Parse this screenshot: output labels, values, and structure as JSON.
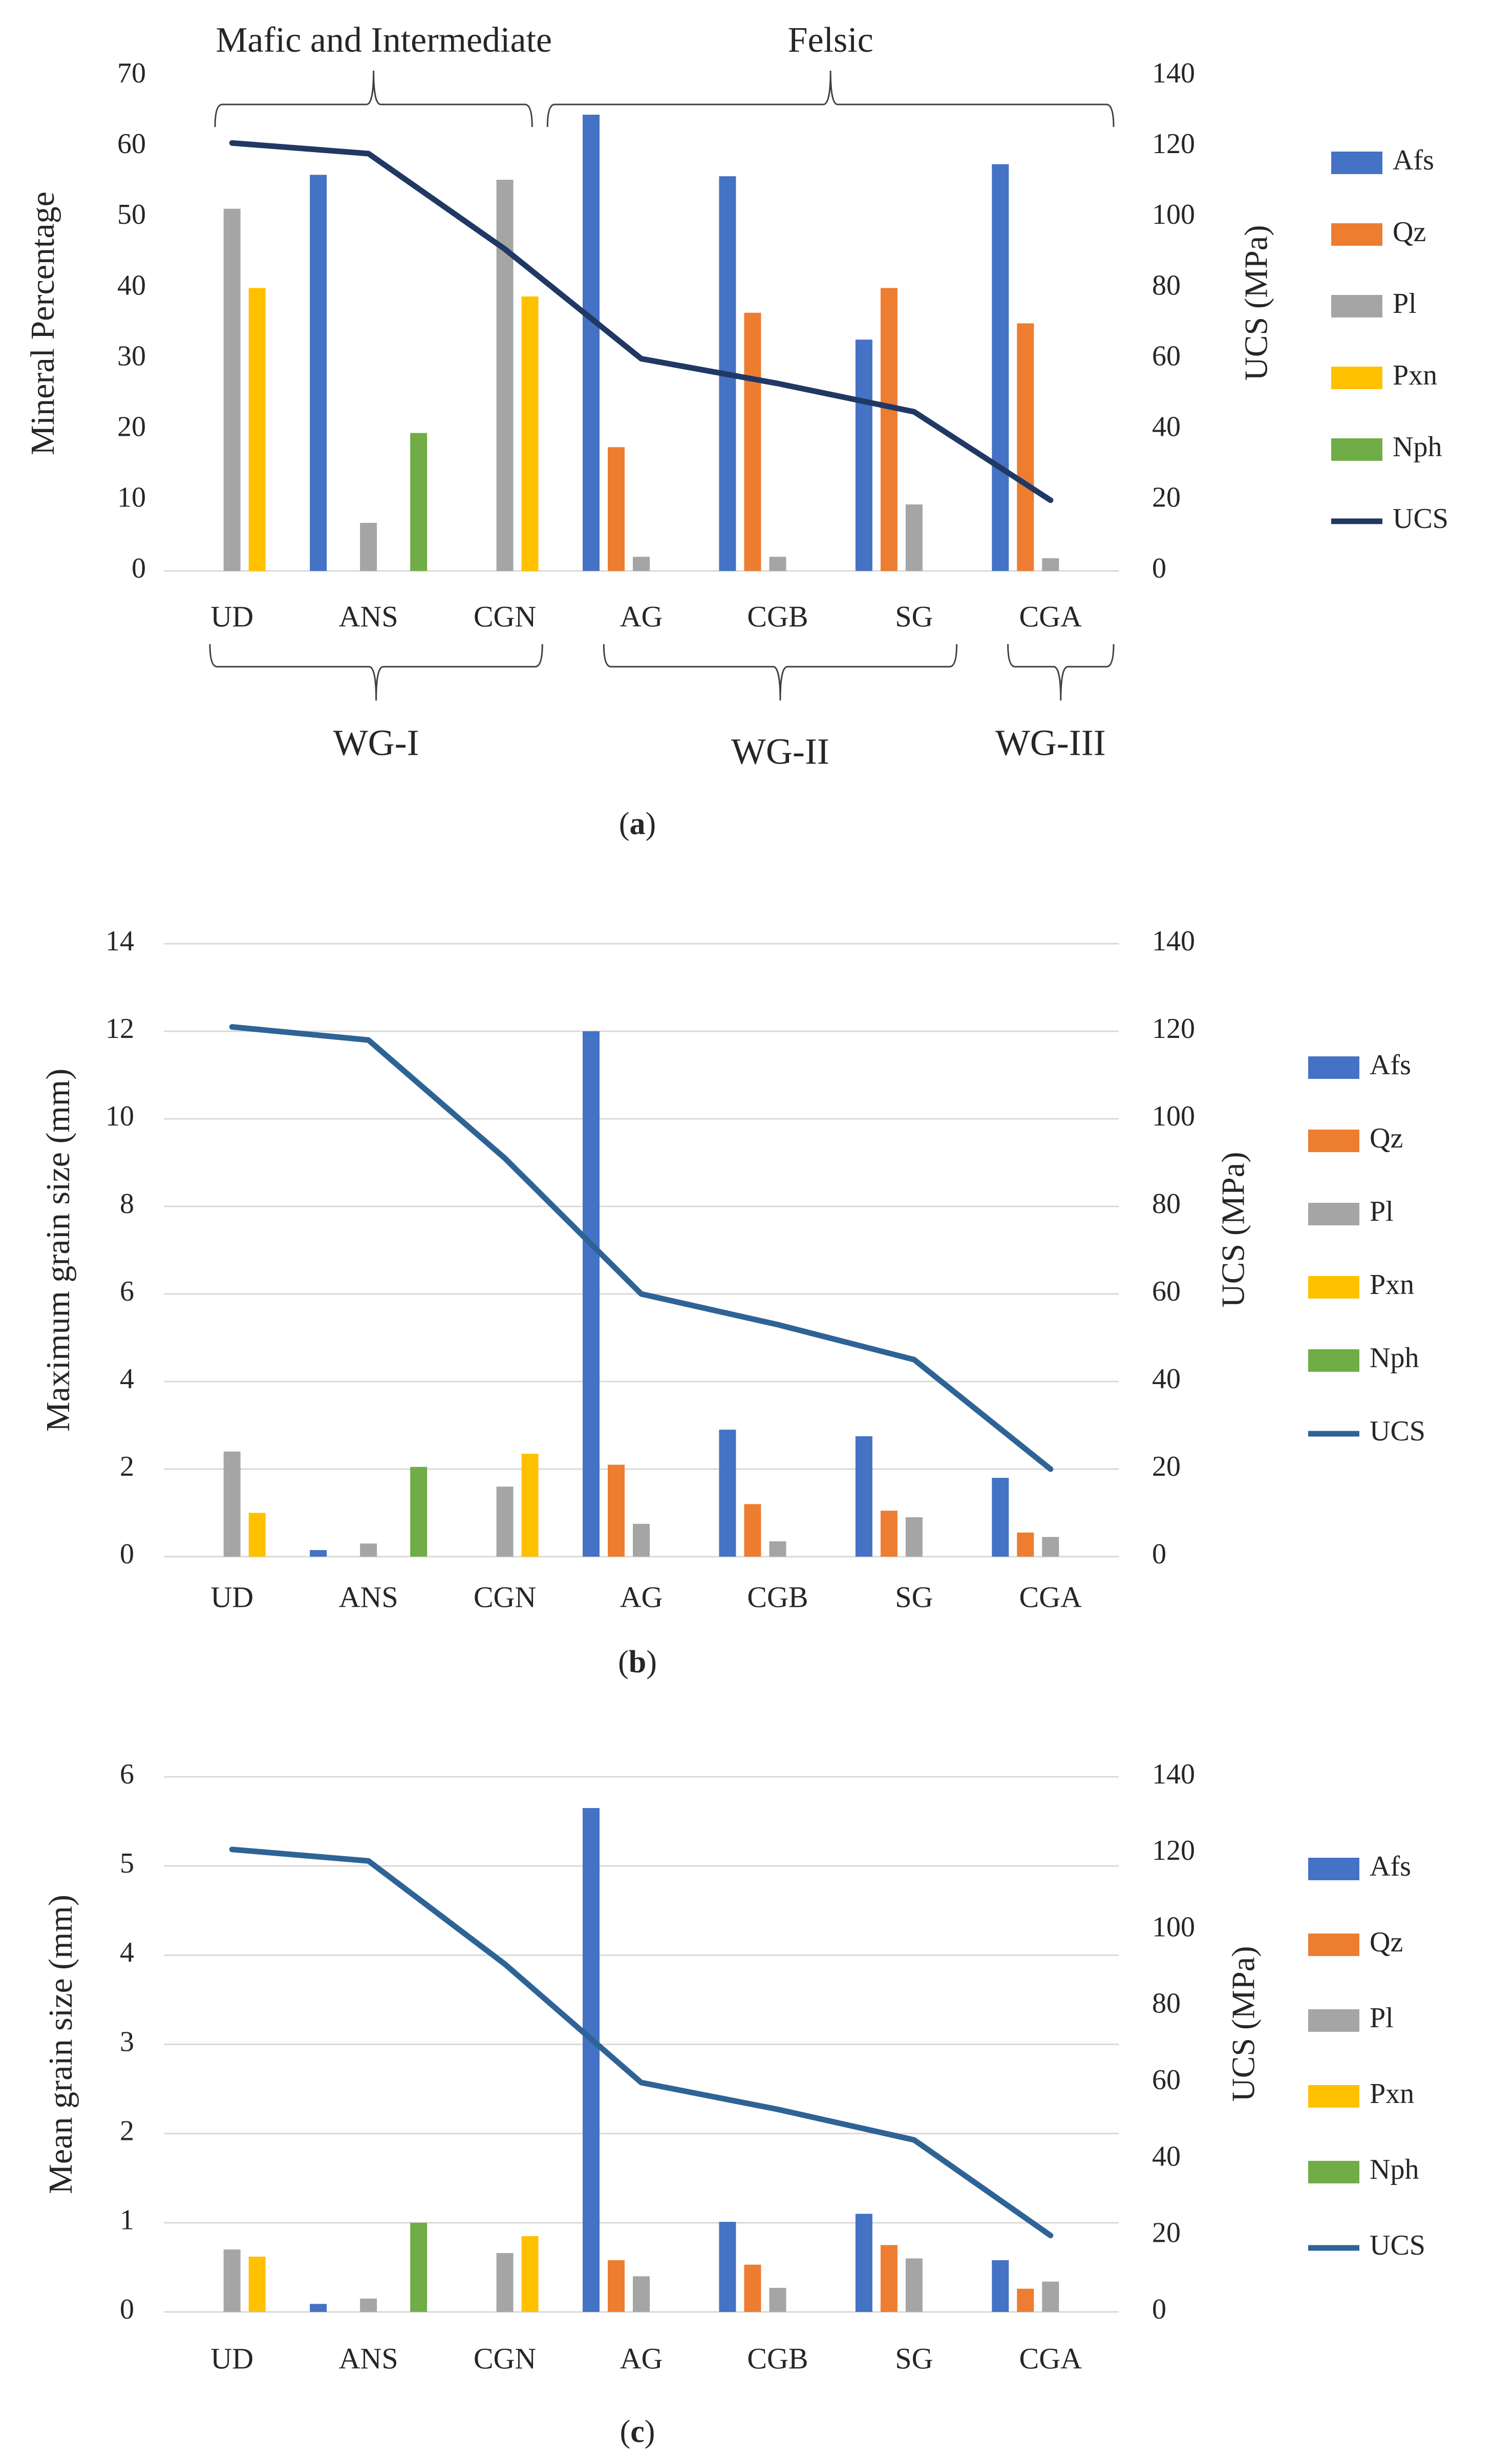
{
  "colors": {
    "Afs": "#4472C4",
    "Qz": "#ED7D31",
    "Pl": "#A5A5A5",
    "Pxn": "#FFC000",
    "Nph": "#70AD47",
    "UCS_a": "#203864",
    "UCS_bc": "#2E6396",
    "grid": "#D9D9D9",
    "axis_text": "#595959"
  },
  "chart_data": [
    {
      "type": "bar",
      "panel_label": "a",
      "categories": [
        "UD",
        "ANS",
        "CGN",
        "AG",
        "CGB",
        "SG",
        "CGA"
      ],
      "ylabel": "Mineral Percentage",
      "y2label": "UCS (MPa)",
      "ylim": [
        0,
        70
      ],
      "y2lim": [
        0,
        140
      ],
      "yticks": [
        "0",
        "10",
        "20",
        "30",
        "40",
        "50",
        "60",
        "70"
      ],
      "y2ticks": [
        "0",
        "20",
        "40",
        "60",
        "80",
        "100",
        "120",
        "140"
      ],
      "grid": false,
      "series": [
        {
          "name": "Afs",
          "values": [
            0,
            56,
            0,
            64.5,
            55.8,
            32.7,
            57.5
          ]
        },
        {
          "name": "Qz",
          "values": [
            0,
            0,
            0,
            17.5,
            36.5,
            40,
            35
          ]
        },
        {
          "name": "Pl",
          "values": [
            51.2,
            6.8,
            55.3,
            2,
            2,
            9.4,
            1.8
          ]
        },
        {
          "name": "Pxn",
          "values": [
            40,
            0,
            38.8,
            0,
            0,
            0,
            0
          ]
        },
        {
          "name": "Nph",
          "values": [
            0,
            19.5,
            0,
            0,
            0,
            0,
            0
          ]
        }
      ],
      "line": {
        "name": "UCS",
        "values": [
          121,
          118,
          91,
          60,
          53,
          45,
          20
        ]
      },
      "top_groups": [
        {
          "label": "Mafic and Intermediate",
          "from": 0,
          "to": 2
        },
        {
          "label": "Felsic",
          "from": 3,
          "to": 6
        }
      ],
      "bottom_groups": [
        {
          "label": "WG-I",
          "from": 0,
          "to": 2
        },
        {
          "label": "WG-II",
          "from": 3,
          "to": 5
        },
        {
          "label": "WG-III",
          "from": 6,
          "to": 6
        }
      ],
      "legend": {
        "position": "right",
        "entries": [
          "Afs",
          "Qz",
          "Pl",
          "Pxn",
          "Nph",
          "UCS"
        ]
      }
    },
    {
      "type": "bar",
      "panel_label": "b",
      "categories": [
        "UD",
        "ANS",
        "CGN",
        "AG",
        "CGB",
        "SG",
        "CGA"
      ],
      "ylabel": "Maximum grain size (mm)",
      "y2label": "UCS (MPa)",
      "ylim": [
        0,
        14
      ],
      "y2lim": [
        0,
        140
      ],
      "yticks": [
        "0",
        "2",
        "4",
        "6",
        "8",
        "10",
        "12",
        "14"
      ],
      "y2ticks": [
        "0",
        "20",
        "40",
        "60",
        "80",
        "100",
        "120",
        "140"
      ],
      "grid": true,
      "series": [
        {
          "name": "Afs",
          "values": [
            0,
            0.15,
            0,
            12,
            2.9,
            2.75,
            1.8
          ]
        },
        {
          "name": "Qz",
          "values": [
            0,
            0,
            0,
            2.1,
            1.2,
            1.05,
            0.55
          ]
        },
        {
          "name": "Pl",
          "values": [
            2.4,
            0.3,
            1.6,
            0.75,
            0.35,
            0.9,
            0.45
          ]
        },
        {
          "name": "Pxn",
          "values": [
            1,
            0,
            2.35,
            0,
            0,
            0,
            0
          ]
        },
        {
          "name": "Nph",
          "values": [
            0,
            2.05,
            0,
            0,
            0,
            0,
            0
          ]
        }
      ],
      "line": {
        "name": "UCS",
        "values": [
          121,
          118,
          91,
          60,
          53,
          45,
          20
        ]
      },
      "legend": {
        "position": "right",
        "entries": [
          "Afs",
          "Qz",
          "Pl",
          "Pxn",
          "Nph",
          "UCS"
        ]
      }
    },
    {
      "type": "bar",
      "panel_label": "c",
      "categories": [
        "UD",
        "ANS",
        "CGN",
        "AG",
        "CGB",
        "SG",
        "CGA"
      ],
      "ylabel": "Mean grain size (mm)",
      "y2label": "UCS (MPa)",
      "ylim": [
        0,
        6
      ],
      "y2lim": [
        0,
        140
      ],
      "yticks": [
        "0",
        "1",
        "2",
        "3",
        "4",
        "5",
        "6"
      ],
      "y2ticks": [
        "0",
        "20",
        "40",
        "60",
        "80",
        "100",
        "120",
        "140"
      ],
      "grid": true,
      "series": [
        {
          "name": "Afs",
          "values": [
            0,
            0.09,
            0,
            5.65,
            1.01,
            1.1,
            0.58
          ]
        },
        {
          "name": "Qz",
          "values": [
            0,
            0,
            0,
            0.58,
            0.53,
            0.75,
            0.26
          ]
        },
        {
          "name": "Pl",
          "values": [
            0.7,
            0.15,
            0.66,
            0.4,
            0.27,
            0.6,
            0.34
          ]
        },
        {
          "name": "Pxn",
          "values": [
            0.62,
            0,
            0.85,
            0,
            0,
            0,
            0
          ]
        },
        {
          "name": "Nph",
          "values": [
            0,
            1,
            0,
            0,
            0,
            0,
            0
          ]
        }
      ],
      "line": {
        "name": "UCS",
        "values": [
          121,
          118,
          91,
          60,
          53,
          45,
          20
        ]
      },
      "legend": {
        "position": "right",
        "entries": [
          "Afs",
          "Qz",
          "Pl",
          "Pxn",
          "Nph",
          "UCS"
        ]
      }
    }
  ]
}
